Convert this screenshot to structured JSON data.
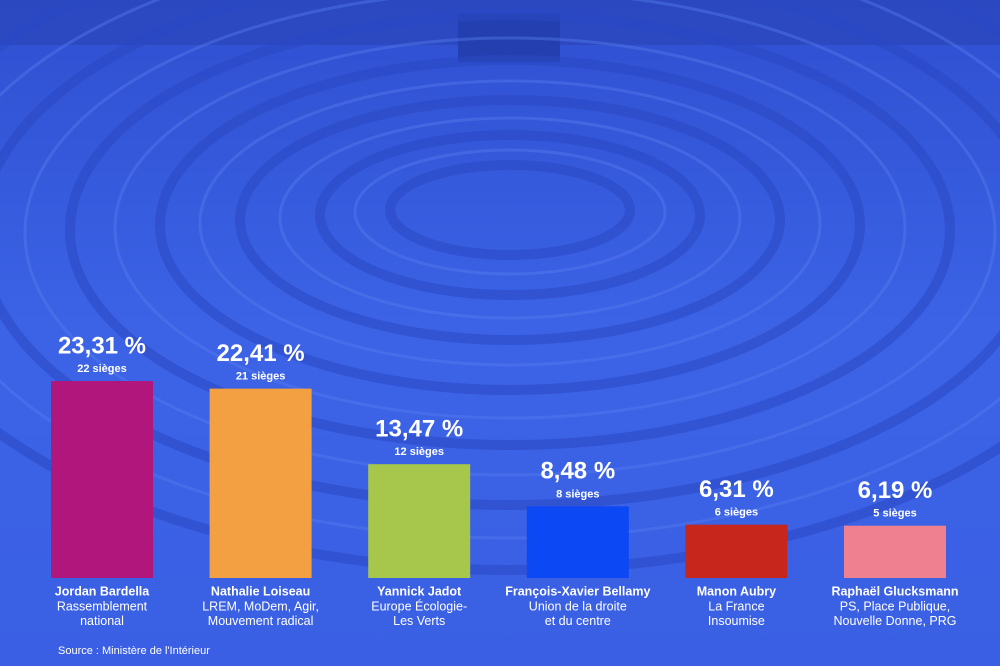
{
  "chart_data": {
    "type": "bar",
    "categories": [
      "Jordan Bardella",
      "Nathalie Loiseau",
      "Yannick Jadot",
      "François-Xavier Bellamy",
      "Manon Aubry",
      "Raphaël Glucksmann"
    ],
    "parties": [
      [
        "Rassemblement",
        "national"
      ],
      [
        "LREM, MoDem, Agir,",
        "Mouvement radical"
      ],
      [
        "Europe Écologie-",
        "Les Verts"
      ],
      [
        "Union de la droite",
        "et du centre"
      ],
      [
        "La France",
        "Insoumise"
      ],
      [
        "PS, Place Publique,",
        "Nouvelle Donne, PRG"
      ]
    ],
    "values": [
      23.31,
      22.41,
      13.47,
      8.48,
      6.31,
      6.19
    ],
    "value_labels": [
      "23,31 %",
      "22,41 %",
      "13,47 %",
      "8,48 %",
      "6,31 %",
      "6,19 %"
    ],
    "seat_labels": [
      "22 sièges",
      "21 sièges",
      "12 sièges",
      "8 sièges",
      "6 sièges",
      "5 sièges"
    ],
    "colors": [
      "#b0167c",
      "#f3a042",
      "#a6c64c",
      "#0c48f4",
      "#c7261c",
      "#ee808f"
    ],
    "source": "Source : Ministère de l'Intérieur"
  }
}
